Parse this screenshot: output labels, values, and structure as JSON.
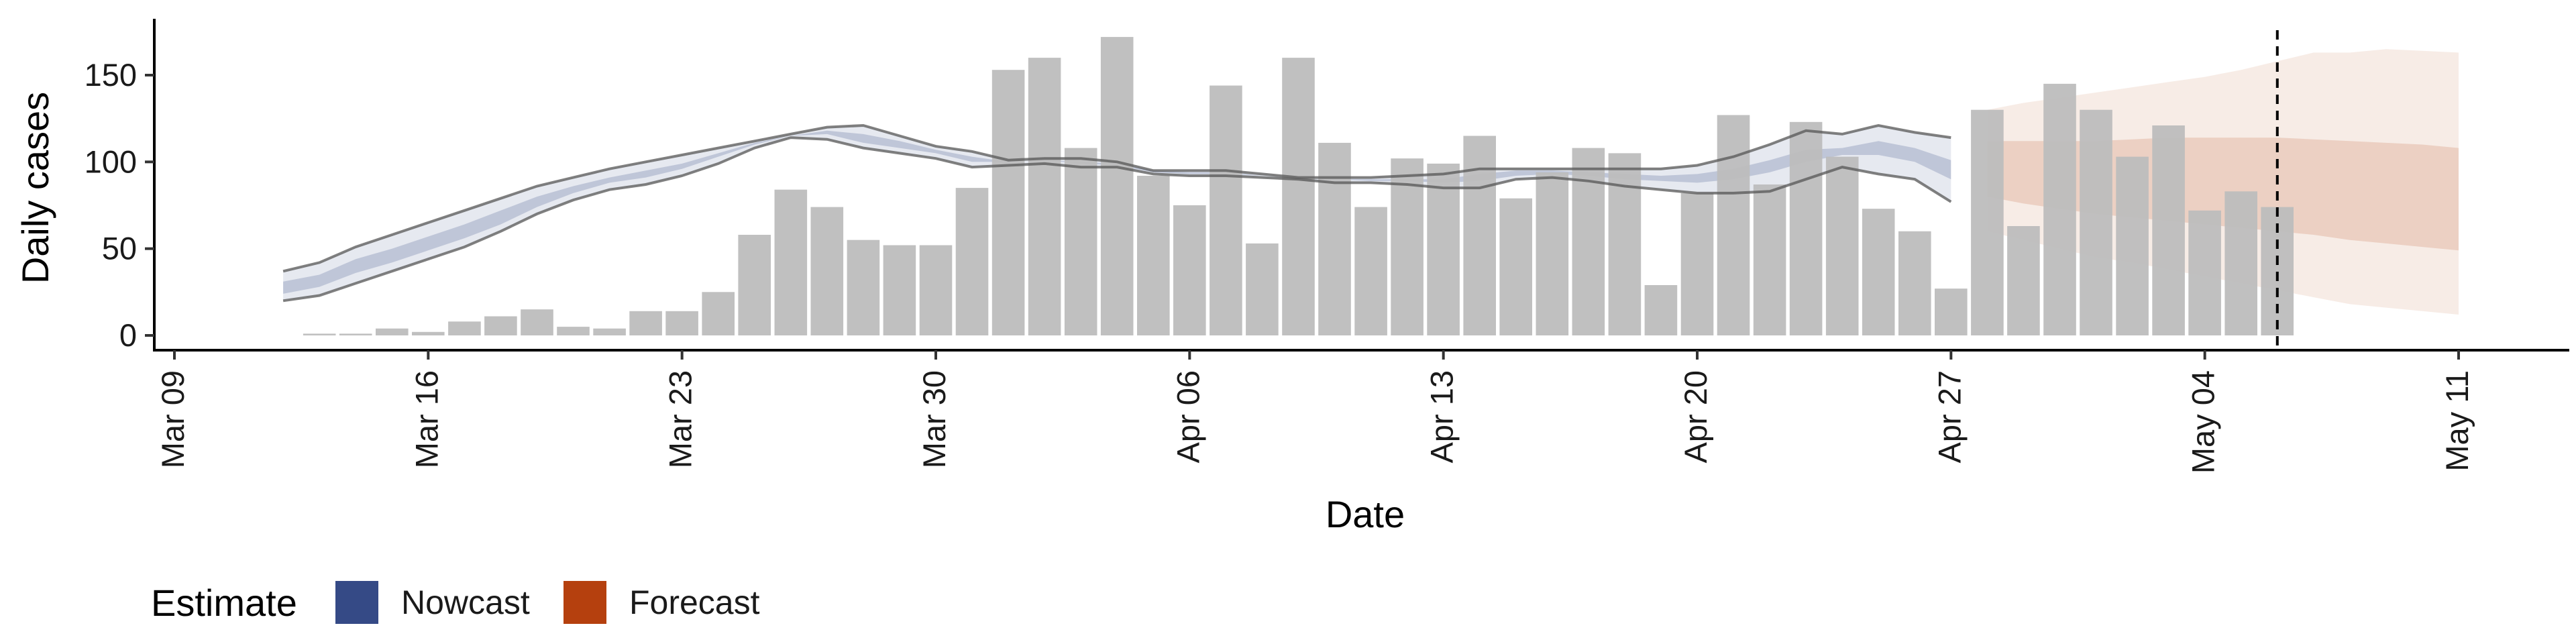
{
  "chart_data": {
    "type": "bar",
    "title": "",
    "xlabel": "Date",
    "ylabel": "Daily cases",
    "x_type": "date",
    "xlim": [
      "2020-03-09",
      "2020-05-11"
    ],
    "ylim": [
      0,
      180
    ],
    "x_ticks": [
      {
        "date": "2020-03-09",
        "label": "Mar 09"
      },
      {
        "date": "2020-03-16",
        "label": "Mar 16"
      },
      {
        "date": "2020-03-23",
        "label": "Mar 23"
      },
      {
        "date": "2020-03-30",
        "label": "Mar 30"
      },
      {
        "date": "2020-04-06",
        "label": "Apr 06"
      },
      {
        "date": "2020-04-13",
        "label": "Apr 13"
      },
      {
        "date": "2020-04-20",
        "label": "Apr 20"
      },
      {
        "date": "2020-04-27",
        "label": "Apr 27"
      },
      {
        "date": "2020-05-04",
        "label": "May 04"
      },
      {
        "date": "2020-05-11",
        "label": "May 11"
      }
    ],
    "y_ticks": [
      0,
      50,
      100,
      150
    ],
    "grid": false,
    "legend": {
      "title": "Estimate",
      "position": "bottom-left",
      "entries": [
        {
          "label": "Nowcast",
          "color": "#354a86"
        },
        {
          "label": "Forecast",
          "color": "#b5400e"
        }
      ]
    },
    "bars": {
      "color": "#bdbdbd",
      "dates": [
        "2020-03-13",
        "2020-03-14",
        "2020-03-15",
        "2020-03-16",
        "2020-03-17",
        "2020-03-18",
        "2020-03-19",
        "2020-03-20",
        "2020-03-21",
        "2020-03-22",
        "2020-03-23",
        "2020-03-24",
        "2020-03-25",
        "2020-03-26",
        "2020-03-27",
        "2020-03-28",
        "2020-03-29",
        "2020-03-30",
        "2020-03-31",
        "2020-04-01",
        "2020-04-02",
        "2020-04-03",
        "2020-04-04",
        "2020-04-05",
        "2020-04-06",
        "2020-04-07",
        "2020-04-08",
        "2020-04-09",
        "2020-04-10",
        "2020-04-11",
        "2020-04-12",
        "2020-04-13",
        "2020-04-14",
        "2020-04-15",
        "2020-04-16",
        "2020-04-17",
        "2020-04-18",
        "2020-04-19",
        "2020-04-20",
        "2020-04-21",
        "2020-04-22",
        "2020-04-23",
        "2020-04-24",
        "2020-04-25",
        "2020-04-26",
        "2020-04-27",
        "2020-04-28",
        "2020-04-29",
        "2020-04-30",
        "2020-05-01",
        "2020-05-02",
        "2020-05-03",
        "2020-05-04",
        "2020-05-05",
        "2020-05-06"
      ],
      "values": [
        1,
        1,
        4,
        2,
        8,
        11,
        15,
        5,
        4,
        14,
        14,
        25,
        58,
        84,
        74,
        55,
        52,
        52,
        85,
        153,
        160,
        108,
        172,
        92,
        75,
        144,
        53,
        160,
        111,
        74,
        102,
        99,
        115,
        79,
        94,
        108,
        105,
        29,
        82,
        127,
        87,
        123,
        103,
        73,
        60,
        27,
        130,
        63,
        145,
        130,
        103,
        121,
        72,
        83,
        74
      ]
    },
    "nowcast": {
      "color": "#354a86",
      "dates": [
        "2020-03-12",
        "2020-03-13",
        "2020-03-14",
        "2020-03-15",
        "2020-03-16",
        "2020-03-17",
        "2020-03-18",
        "2020-03-19",
        "2020-03-20",
        "2020-03-21",
        "2020-03-22",
        "2020-03-23",
        "2020-03-24",
        "2020-03-25",
        "2020-03-26",
        "2020-03-27",
        "2020-03-28",
        "2020-03-29",
        "2020-03-30",
        "2020-03-31",
        "2020-04-01",
        "2020-04-02",
        "2020-04-03",
        "2020-04-04",
        "2020-04-05",
        "2020-04-06",
        "2020-04-07",
        "2020-04-08",
        "2020-04-09",
        "2020-04-10",
        "2020-04-11",
        "2020-04-12",
        "2020-04-13",
        "2020-04-14",
        "2020-04-15",
        "2020-04-16",
        "2020-04-17",
        "2020-04-18",
        "2020-04-19",
        "2020-04-20",
        "2020-04-21",
        "2020-04-22",
        "2020-04-23",
        "2020-04-24",
        "2020-04-25",
        "2020-04-26",
        "2020-04-27"
      ],
      "lower_90": [
        20,
        23,
        30,
        37,
        44,
        51,
        60,
        70,
        78,
        84,
        87,
        92,
        99,
        108,
        114,
        113,
        108,
        105,
        102,
        97,
        98,
        99,
        97,
        97,
        93,
        92,
        92,
        91,
        90,
        88,
        88,
        87,
        85,
        85,
        90,
        91,
        89,
        86,
        84,
        82,
        82,
        83,
        90,
        97,
        93,
        90,
        77
      ],
      "upper_90": [
        37,
        42,
        51,
        58,
        65,
        72,
        79,
        86,
        91,
        96,
        100,
        104,
        108,
        112,
        116,
        120,
        121,
        115,
        109,
        106,
        101,
        102,
        102,
        100,
        95,
        95,
        95,
        93,
        91,
        91,
        91,
        92,
        93,
        96,
        96,
        96,
        96,
        96,
        96,
        98,
        103,
        110,
        118,
        116,
        121,
        117,
        114
      ],
      "lower_50": [
        24,
        28,
        36,
        42,
        49,
        56,
        64,
        74,
        82,
        88,
        91,
        96,
        103,
        110,
        115,
        116,
        111,
        108,
        105,
        100,
        100,
        101,
        99,
        98,
        94,
        93,
        93,
        92,
        91,
        90,
        89,
        89,
        88,
        89,
        92,
        93,
        92,
        90,
        89,
        88,
        90,
        94,
        100,
        104,
        104,
        100,
        90
      ],
      "upper_50": [
        31,
        35,
        44,
        50,
        57,
        64,
        72,
        80,
        86,
        91,
        95,
        99,
        105,
        111,
        115,
        118,
        116,
        112,
        107,
        103,
        100,
        101,
        100,
        99,
        95,
        94,
        94,
        92,
        91,
        90,
        90,
        90,
        90,
        93,
        95,
        95,
        94,
        93,
        92,
        93,
        96,
        101,
        107,
        108,
        112,
        108,
        101
      ]
    },
    "forecast": {
      "color": "#b5400e",
      "dates": [
        "2020-04-28",
        "2020-04-29",
        "2020-04-30",
        "2020-05-01",
        "2020-05-02",
        "2020-05-03",
        "2020-05-04",
        "2020-05-05",
        "2020-05-06",
        "2020-05-07",
        "2020-05-08",
        "2020-05-09",
        "2020-05-10",
        "2020-05-11"
      ],
      "lower_90": [
        60,
        55,
        50,
        45,
        42,
        38,
        34,
        30,
        26,
        22,
        18,
        16,
        14,
        12
      ],
      "upper_90": [
        130,
        134,
        137,
        140,
        143,
        146,
        149,
        153,
        158,
        163,
        163,
        165,
        164,
        163
      ],
      "lower_50": [
        80,
        76,
        73,
        70,
        68,
        66,
        64,
        62,
        60,
        58,
        55,
        53,
        51,
        49
      ],
      "upper_50": [
        112,
        112,
        112,
        112,
        113,
        114,
        114,
        114,
        114,
        113,
        112,
        111,
        110,
        108
      ]
    },
    "vline_date": "2020-05-06"
  }
}
